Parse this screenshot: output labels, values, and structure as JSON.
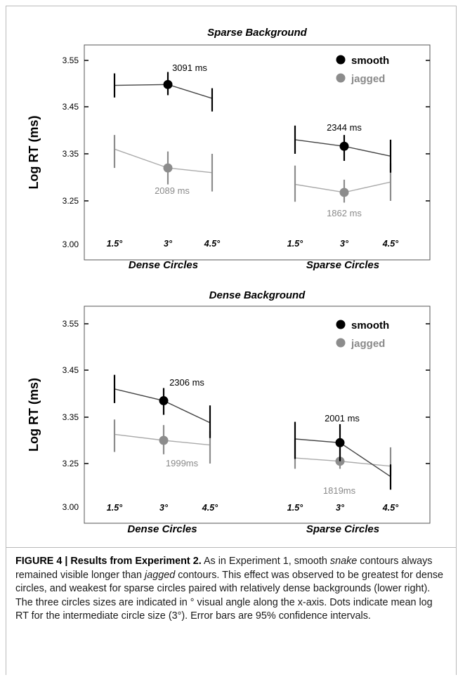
{
  "colors": {
    "smooth": "#000000",
    "jagged": "#8c8c8c"
  },
  "ylabel": "Log RT (ms)",
  "legend": {
    "smooth": "smooth",
    "jagged": "jagged"
  },
  "chart_data": [
    {
      "type": "line",
      "title": "Sparse Background",
      "ylabel": "Log RT (ms)",
      "yticks": [
        "3.00",
        "3.25",
        "3.35",
        "3.45",
        "3.55"
      ],
      "tick_labels": [
        "1.5°",
        "3°",
        "4.5°"
      ],
      "groups": [
        "Dense Circles",
        "Sparse Circles"
      ],
      "legend_position": "top-right",
      "series": [
        {
          "name": "smooth",
          "groups": [
            {
              "group": "Dense Circles",
              "values": [
                3.496,
                3.498,
                3.468
              ],
              "ci": [
                [
                  3.47,
                  3.522
                ],
                [
                  3.475,
                  3.525
                ],
                [
                  3.44,
                  3.49
                ]
              ],
              "annotation": "3091 ms"
            },
            {
              "group": "Sparse Circles",
              "values": [
                3.38,
                3.366,
                3.345
              ],
              "ci": [
                [
                  3.35,
                  3.41
                ],
                [
                  3.335,
                  3.39
                ],
                [
                  3.31,
                  3.38
                ]
              ],
              "annotation": "2344 ms"
            }
          ]
        },
        {
          "name": "jagged",
          "groups": [
            {
              "group": "Dense Circles",
              "values": [
                3.36,
                3.32,
                3.31
              ],
              "ci": [
                [
                  3.32,
                  3.39
                ],
                [
                  3.285,
                  3.355
                ],
                [
                  3.27,
                  3.35
                ]
              ],
              "annotation": "2089 ms"
            },
            {
              "group": "Sparse Circles",
              "values": [
                3.285,
                3.268,
                3.29
              ],
              "ci": [
                [
                  3.245,
                  3.325
                ],
                [
                  3.24,
                  3.295
                ],
                [
                  3.25,
                  3.33
                ]
              ],
              "annotation": "1862 ms"
            }
          ]
        }
      ]
    },
    {
      "type": "line",
      "title": "Dense Background",
      "ylabel": "Log RT (ms)",
      "yticks": [
        "3.00",
        "3.25",
        "3.35",
        "3.45",
        "3.55"
      ],
      "tick_labels": [
        "1.5°",
        "3°",
        "4.5°"
      ],
      "groups": [
        "Dense Circles",
        "Sparse Circles"
      ],
      "legend_position": "top-right",
      "series": [
        {
          "name": "smooth",
          "groups": [
            {
              "group": "Dense Circles",
              "values": [
                3.41,
                3.385,
                3.338
              ],
              "ci": [
                [
                  3.38,
                  3.44
                ],
                [
                  3.355,
                  3.412
                ],
                [
                  3.305,
                  3.375
                ]
              ],
              "annotation": "2306 ms"
            },
            {
              "group": "Sparse Circles",
              "values": [
                3.303,
                3.295,
                3.175
              ],
              "ci": [
                [
                  3.26,
                  3.34
                ],
                [
                  3.255,
                  3.335
                ],
                [
                  3.1,
                  3.245
                ]
              ],
              "annotation": "2001 ms"
            }
          ]
        },
        {
          "name": "jagged",
          "groups": [
            {
              "group": "Dense Circles",
              "values": [
                3.313,
                3.3,
                3.29
              ],
              "ci": [
                [
                  3.275,
                  3.345
                ],
                [
                  3.27,
                  3.333
                ],
                [
                  3.25,
                  3.32
                ]
              ],
              "annotation": "1999ms"
            },
            {
              "group": "Sparse Circles",
              "values": [
                3.262,
                3.255,
                3.235
              ],
              "ci": [
                [
                  3.22,
                  3.302
                ],
                [
                  3.22,
                  3.29
                ],
                [
                  3.18,
                  3.285
                ]
              ],
              "annotation": "1819ms"
            }
          ]
        }
      ]
    }
  ],
  "caption": {
    "label": "FIGURE 4 | Results from Experiment 2.",
    "t1": " As in Experiment 1, smooth ",
    "i1": "snake",
    "t2": " contours always remained visible longer than ",
    "i2": "jagged",
    "t3": " contours. This effect was observed to be greatest for dense circles, and weakest for sparse circles paired with relatively dense backgrounds (lower right). The three circles sizes are indicated in ° visual angle along the x-axis. Dots indicate mean log RT for the intermediate circle size (3°). Error bars are 95% confidence intervals."
  }
}
